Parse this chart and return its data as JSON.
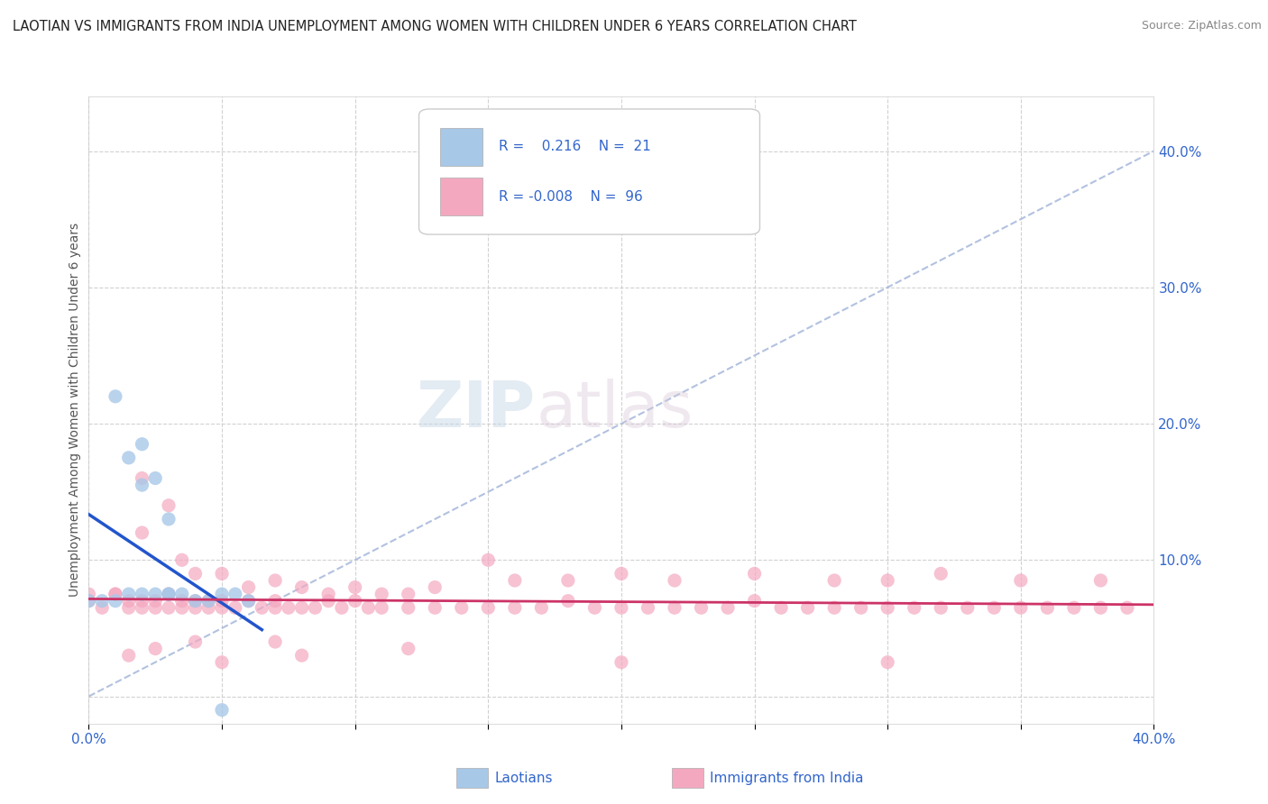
{
  "title": "LAOTIAN VS IMMIGRANTS FROM INDIA UNEMPLOYMENT AMONG WOMEN WITH CHILDREN UNDER 6 YEARS CORRELATION CHART",
  "source": "Source: ZipAtlas.com",
  "ylabel": "Unemployment Among Women with Children Under 6 years",
  "xlim": [
    0.0,
    0.4
  ],
  "ylim": [
    -0.02,
    0.44
  ],
  "x_ticks": [
    0.0,
    0.05,
    0.1,
    0.15,
    0.2,
    0.25,
    0.3,
    0.35,
    0.4
  ],
  "y_ticks": [
    0.0,
    0.1,
    0.2,
    0.3,
    0.4
  ],
  "grid_color": "#cccccc",
  "background_color": "#ffffff",
  "laotian_color": "#a8c8e8",
  "india_color": "#f4a8c0",
  "laotian_line_color": "#2255cc",
  "india_line_color": "#cc3366",
  "diagonal_line_color": "#aabbdd",
  "watermark_zip": "ZIP",
  "watermark_atlas": "atlas",
  "legend_R1": "0.216",
  "legend_N1": "21",
  "legend_R2": "-0.008",
  "legend_N2": "96",
  "lao_x": [
    0.0,
    0.005,
    0.01,
    0.015,
    0.02,
    0.02,
    0.025,
    0.03,
    0.03,
    0.035,
    0.04,
    0.045,
    0.05,
    0.055,
    0.06,
    0.01,
    0.015,
    0.02,
    0.025,
    0.03,
    0.05
  ],
  "lao_y": [
    0.07,
    0.07,
    0.07,
    0.175,
    0.075,
    0.155,
    0.16,
    0.13,
    0.075,
    0.075,
    0.07,
    0.07,
    0.075,
    0.075,
    0.07,
    0.22,
    0.075,
    0.185,
    0.075,
    0.075,
    -0.01
  ],
  "india_x": [
    0.0,
    0.005,
    0.01,
    0.015,
    0.015,
    0.02,
    0.02,
    0.025,
    0.025,
    0.03,
    0.03,
    0.035,
    0.035,
    0.04,
    0.04,
    0.045,
    0.045,
    0.05,
    0.05,
    0.055,
    0.06,
    0.065,
    0.07,
    0.07,
    0.075,
    0.08,
    0.085,
    0.09,
    0.095,
    0.1,
    0.105,
    0.11,
    0.12,
    0.13,
    0.14,
    0.15,
    0.16,
    0.17,
    0.18,
    0.19,
    0.2,
    0.21,
    0.22,
    0.23,
    0.24,
    0.25,
    0.26,
    0.27,
    0.28,
    0.29,
    0.3,
    0.31,
    0.32,
    0.33,
    0.34,
    0.35,
    0.36,
    0.37,
    0.38,
    0.39,
    0.0,
    0.01,
    0.02,
    0.02,
    0.03,
    0.035,
    0.04,
    0.05,
    0.06,
    0.07,
    0.08,
    0.09,
    0.1,
    0.11,
    0.12,
    0.13,
    0.15,
    0.16,
    0.18,
    0.2,
    0.22,
    0.25,
    0.28,
    0.3,
    0.32,
    0.35,
    0.38,
    0.07,
    0.04,
    0.025,
    0.015,
    0.05,
    0.08,
    0.12,
    0.2,
    0.3
  ],
  "india_y": [
    0.07,
    0.065,
    0.075,
    0.065,
    0.07,
    0.07,
    0.065,
    0.07,
    0.065,
    0.075,
    0.065,
    0.07,
    0.065,
    0.065,
    0.07,
    0.065,
    0.07,
    0.065,
    0.07,
    0.065,
    0.07,
    0.065,
    0.065,
    0.07,
    0.065,
    0.065,
    0.065,
    0.07,
    0.065,
    0.07,
    0.065,
    0.065,
    0.065,
    0.065,
    0.065,
    0.065,
    0.065,
    0.065,
    0.07,
    0.065,
    0.065,
    0.065,
    0.065,
    0.065,
    0.065,
    0.07,
    0.065,
    0.065,
    0.065,
    0.065,
    0.065,
    0.065,
    0.065,
    0.065,
    0.065,
    0.065,
    0.065,
    0.065,
    0.065,
    0.065,
    0.075,
    0.075,
    0.12,
    0.16,
    0.14,
    0.1,
    0.09,
    0.09,
    0.08,
    0.085,
    0.08,
    0.075,
    0.08,
    0.075,
    0.075,
    0.08,
    0.1,
    0.085,
    0.085,
    0.09,
    0.085,
    0.09,
    0.085,
    0.085,
    0.09,
    0.085,
    0.085,
    0.04,
    0.04,
    0.035,
    0.03,
    0.025,
    0.03,
    0.035,
    0.025,
    0.025
  ]
}
